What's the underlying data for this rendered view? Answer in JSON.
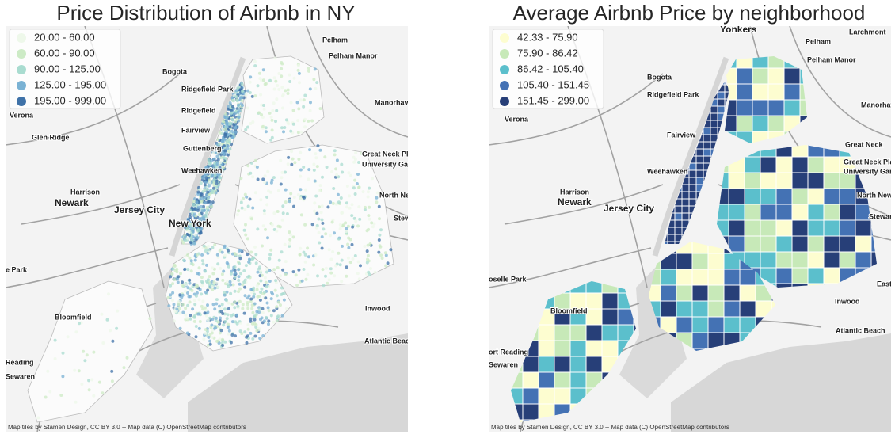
{
  "panels": [
    {
      "title": "Price Distribution of Airbnb in NY",
      "legend": [
        {
          "label": "20.00 - 60.00",
          "color": "#eef8ea"
        },
        {
          "label": "60.00 - 90.00",
          "color": "#cdebc6"
        },
        {
          "label": "90.00 - 125.00",
          "color": "#a9dcd0"
        },
        {
          "label": "125.00 - 195.00",
          "color": "#7ab2d4"
        },
        {
          "label": "195.00 - 999.00",
          "color": "#3f72a8"
        }
      ],
      "places": [
        "Pelham",
        "Pelham Manor",
        "Bogota",
        "Ridgefield Park",
        "Ridgefield",
        "Manorhaven",
        "Verona",
        "Fairview",
        "Glen Ridge",
        "Guttenberg",
        "Great Neck Plaza",
        "University Gardens",
        "Weehawken",
        "Harrison",
        "North New",
        "Newark",
        "Jersey City",
        "New York",
        "Stewar",
        "e Park",
        "Bloomfield",
        "Inwood",
        "Atlantic Beach",
        "Reading",
        "Sewaren"
      ],
      "attribution": "Map tiles by Stamen Design, CC BY 3.0 -- Map data (C) OpenStreetMap contributors"
    },
    {
      "title": "Average Airbnb Price by neighborhood",
      "legend": [
        {
          "label": "42.33 - 75.90",
          "color": "#fdfdd0"
        },
        {
          "label": "75.90 - 86.42",
          "color": "#c7e9b8"
        },
        {
          "label": "86.42 - 105.40",
          "color": "#5bbfcc"
        },
        {
          "label": "105.40 - 151.45",
          "color": "#4472b4"
        },
        {
          "label": "151.45 - 299.00",
          "color": "#273f78"
        }
      ],
      "places": [
        "Yonkers",
        "Larchmont",
        "Pelham",
        "Pelham Manor",
        "Bogota",
        "Ridgefield Park",
        "Manorhaven",
        "Verona",
        "Fairview",
        "Great Neck",
        "Great Neck Plaza",
        "University Gardens",
        "Weehawken",
        "Harrison",
        "North New Hy",
        "Newark",
        "Jersey City",
        "Stewart H",
        "oselle Park",
        "Bloomfield",
        "Inwood",
        "Atlantic Beach",
        "ort Reading",
        "Sewaren",
        "East"
      ],
      "attribution": "Map tiles by Stamen Design, CC BY 3.0 -- Map data (C) OpenStreetMap contributors"
    }
  ]
}
